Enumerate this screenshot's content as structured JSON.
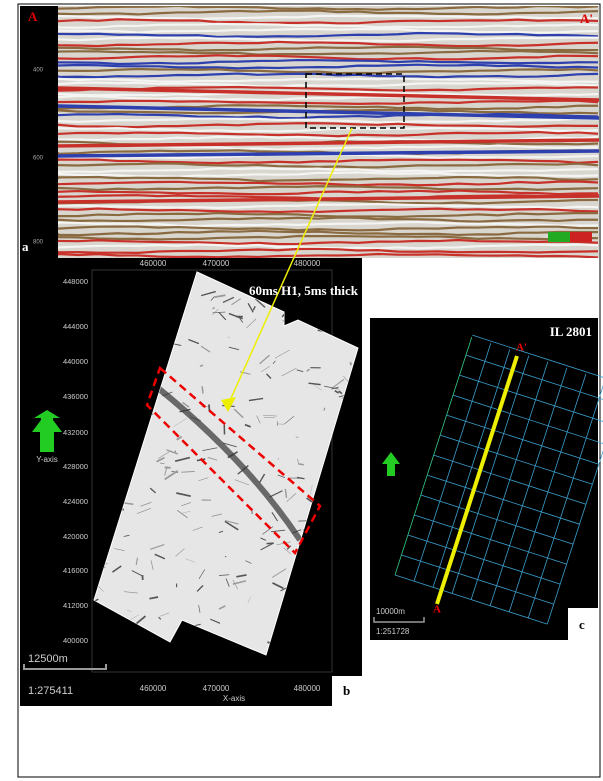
{
  "panel_a": {
    "label": "a",
    "left_marker": "A",
    "right_marker": "A'",
    "depth_ticks": [
      "400",
      "600",
      "800"
    ]
  },
  "panel_b": {
    "label": "b",
    "title": "60ms H1, 5ms thick",
    "y_axis_label": "Y-axis",
    "x_axis_label": "X-axis",
    "x_ticks": [
      "460000",
      "470000",
      "480000"
    ],
    "y_ticks": [
      "448000",
      "444000",
      "440000",
      "436000",
      "432000",
      "428000",
      "424000",
      "420000",
      "416000",
      "412000",
      "400000"
    ],
    "scale_bar": "12500m",
    "scale_ratio": "1:275411"
  },
  "panel_c": {
    "label": "c",
    "title": "IL 2801",
    "start_marker": "A",
    "end_marker": "A'",
    "scale_bar": "10000m",
    "scale_ratio": "1:251728"
  }
}
